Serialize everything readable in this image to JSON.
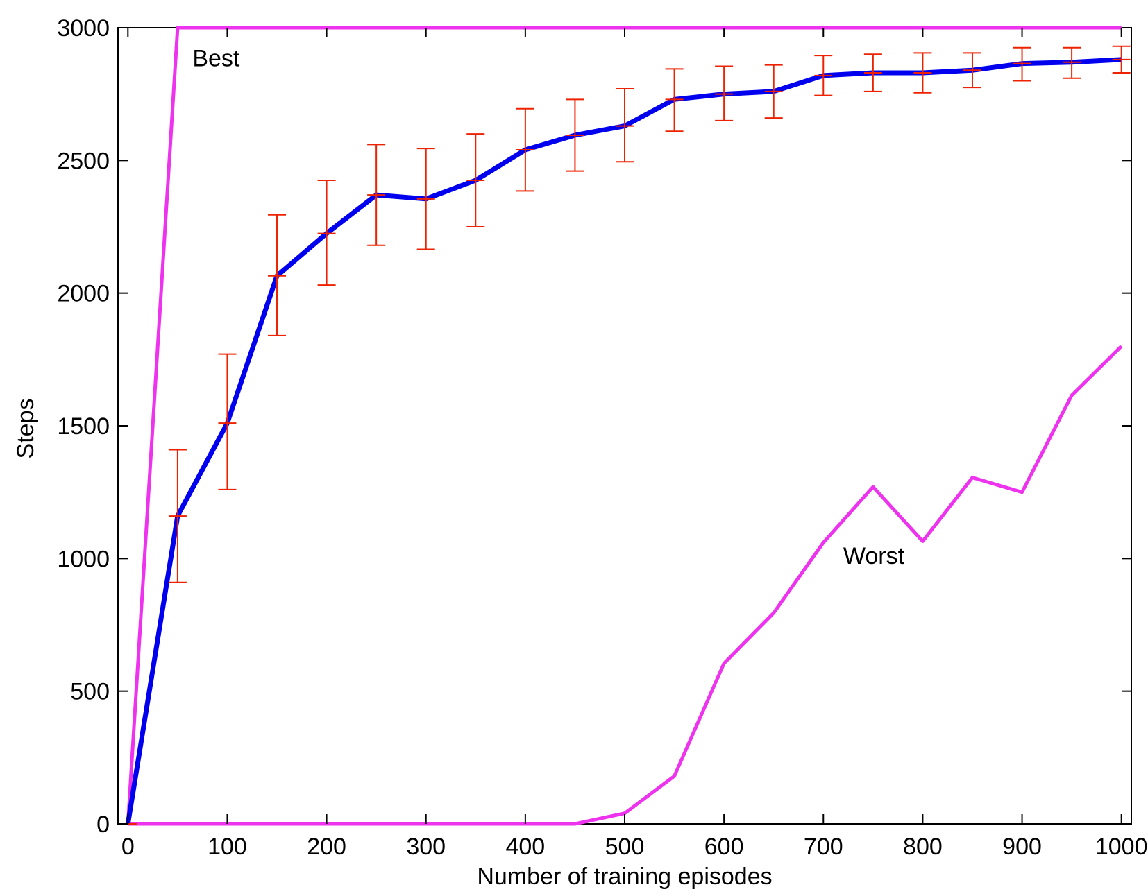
{
  "chart_data": {
    "type": "line",
    "title": "",
    "xlabel": "Number of training episodes",
    "ylabel": "Steps",
    "xlim": [
      -10,
      1010
    ],
    "ylim": [
      0,
      3000
    ],
    "xticks": [
      0,
      100,
      200,
      300,
      400,
      500,
      600,
      700,
      800,
      900,
      1000
    ],
    "yticks": [
      0,
      500,
      1000,
      1500,
      2000,
      2500,
      3000
    ],
    "grid": false,
    "legend": "none",
    "x": [
      0,
      50,
      100,
      150,
      200,
      250,
      300,
      350,
      400,
      450,
      500,
      550,
      600,
      650,
      700,
      750,
      800,
      850,
      900,
      950,
      1000
    ],
    "series": [
      {
        "role": "mean",
        "color": "#0000ee",
        "values": [
          0,
          1160,
          1510,
          2065,
          2225,
          2370,
          2355,
          2425,
          2540,
          2595,
          2630,
          2730,
          2750,
          2760,
          2820,
          2830,
          2830,
          2840,
          2865,
          2870,
          2880
        ],
        "error_low": [
          0,
          910,
          1260,
          1840,
          2030,
          2180,
          2165,
          2250,
          2385,
          2460,
          2495,
          2610,
          2650,
          2660,
          2745,
          2760,
          2755,
          2775,
          2800,
          2810,
          2830
        ],
        "error_high": [
          0,
          1410,
          1770,
          2295,
          2425,
          2560,
          2545,
          2600,
          2695,
          2730,
          2770,
          2845,
          2855,
          2860,
          2895,
          2900,
          2905,
          2905,
          2925,
          2925,
          2930
        ]
      },
      {
        "role": "best",
        "color": "#ee33ee",
        "values": [
          0,
          3000,
          3000,
          3000,
          3000,
          3000,
          3000,
          3000,
          3000,
          3000,
          3000,
          3000,
          3000,
          3000,
          3000,
          3000,
          3000,
          3000,
          3000,
          3000,
          3000
        ]
      },
      {
        "role": "worst",
        "color": "#ee33ee",
        "values": [
          0,
          0,
          0,
          0,
          0,
          0,
          0,
          0,
          0,
          0,
          40,
          180,
          605,
          795,
          1060,
          1270,
          1065,
          1305,
          1250,
          1615,
          1800
        ]
      }
    ],
    "error_bar_color": "#ee2200",
    "annotations": [
      {
        "text": "Best",
        "x": 65,
        "y": 2855
      },
      {
        "text": "Worst",
        "x": 720,
        "y": 980
      }
    ]
  }
}
